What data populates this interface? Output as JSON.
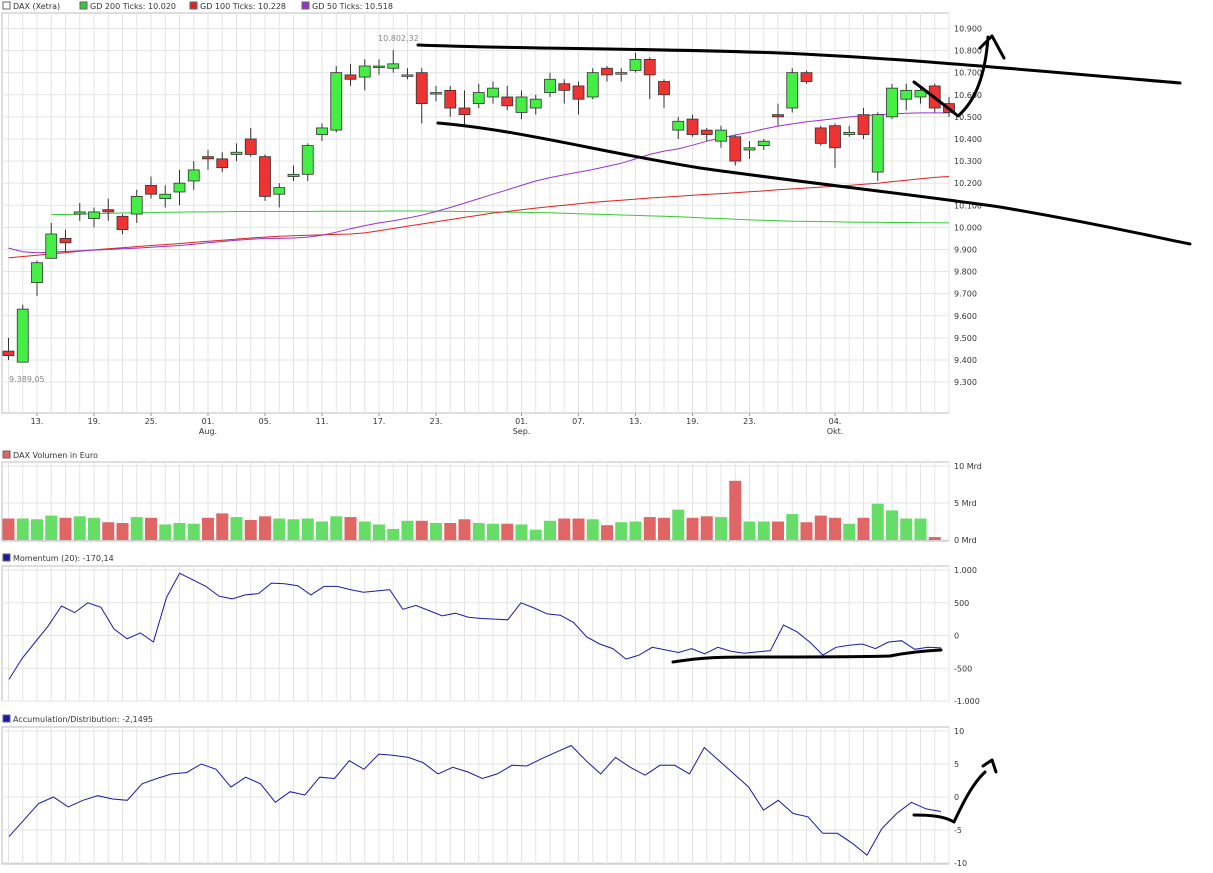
{
  "legend": {
    "main": [
      {
        "label": "DAX (Xetra)",
        "color": "#ffffff"
      },
      {
        "label": "GD 200 Ticks: 10.020",
        "color": "#33cc33"
      },
      {
        "label": "GD 100 Ticks: 10.228",
        "color": "#dd2222"
      },
      {
        "label": "GD 50 Ticks: 10.518",
        "color": "#9933cc"
      }
    ],
    "volume": {
      "label": "DAX Volumen in Euro",
      "color": "#e06666"
    },
    "momentum": {
      "label": "Momentum (20): -170,14",
      "color": "#1a1aa6"
    },
    "accdist": {
      "label": "Accumulation/Distribution: -2,1495",
      "color": "#1a1aa6"
    }
  },
  "annotations": {
    "high": "10.802,32",
    "low": "9.389,05"
  },
  "chart_data": [
    {
      "type": "candlestick",
      "title": "DAX (Xetra)",
      "ylim": [
        9160,
        10970
      ],
      "yticks": [
        "9.300",
        "9.400",
        "9.500",
        "9.600",
        "9.700",
        "9.800",
        "9.900",
        "10.000",
        "10.100",
        "10.200",
        "10.300",
        "10.400",
        "10.500",
        "10.600",
        "10.700",
        "10.800",
        "10.900"
      ],
      "xticks": [
        {
          "label": "13.",
          "i": 2
        },
        {
          "label": "19.",
          "i": 6
        },
        {
          "label": "25.",
          "i": 10
        },
        {
          "label": "01.",
          "sub": "Aug.",
          "i": 14
        },
        {
          "label": "05.",
          "i": 18
        },
        {
          "label": "11.",
          "i": 22
        },
        {
          "label": "17.",
          "i": 26
        },
        {
          "label": "23.",
          "i": 30
        },
        {
          "label": "01.",
          "sub": "Sep.",
          "i": 36
        },
        {
          "label": "07.",
          "i": 40
        },
        {
          "label": "13.",
          "i": 44
        },
        {
          "label": "19.",
          "i": 48
        },
        {
          "label": "23.",
          "i": 52
        },
        {
          "label": "04.",
          "sub": "Okt.",
          "i": 58
        }
      ],
      "candles": [
        {
          "o": 9440,
          "c": 9420,
          "h": 9500,
          "l": 9400
        },
        {
          "o": 9390,
          "c": 9630,
          "h": 9650,
          "l": 9389
        },
        {
          "o": 9750,
          "c": 9840,
          "h": 9850,
          "l": 9690
        },
        {
          "o": 9860,
          "c": 9970,
          "h": 10020,
          "l": 9860
        },
        {
          "o": 9950,
          "c": 9930,
          "h": 9990,
          "l": 9890
        },
        {
          "o": 10060,
          "c": 10070,
          "h": 10110,
          "l": 10030
        },
        {
          "o": 10040,
          "c": 10070,
          "h": 10090,
          "l": 10000
        },
        {
          "o": 10080,
          "c": 10070,
          "h": 10130,
          "l": 10030
        },
        {
          "o": 10050,
          "c": 9990,
          "h": 10060,
          "l": 9970
        },
        {
          "o": 10060,
          "c": 10140,
          "h": 10170,
          "l": 10020
        },
        {
          "o": 10190,
          "c": 10150,
          "h": 10230,
          "l": 10130
        },
        {
          "o": 10130,
          "c": 10150,
          "h": 10190,
          "l": 10090
        },
        {
          "o": 10160,
          "c": 10200,
          "h": 10260,
          "l": 10100
        },
        {
          "o": 10210,
          "c": 10260,
          "h": 10300,
          "l": 10170
        },
        {
          "o": 10320,
          "c": 10310,
          "h": 10350,
          "l": 10260
        },
        {
          "o": 10310,
          "c": 10270,
          "h": 10340,
          "l": 10250
        },
        {
          "o": 10330,
          "c": 10340,
          "h": 10380,
          "l": 10300
        },
        {
          "o": 10400,
          "c": 10330,
          "h": 10450,
          "l": 10320
        },
        {
          "o": 10320,
          "c": 10140,
          "h": 10330,
          "l": 10120
        },
        {
          "o": 10150,
          "c": 10180,
          "h": 10200,
          "l": 10090
        },
        {
          "o": 10230,
          "c": 10240,
          "h": 10280,
          "l": 10210
        },
        {
          "o": 10240,
          "c": 10370,
          "h": 10380,
          "l": 10210
        },
        {
          "o": 10420,
          "c": 10450,
          "h": 10470,
          "l": 10390
        },
        {
          "o": 10440,
          "c": 10700,
          "h": 10730,
          "l": 10430
        },
        {
          "o": 10690,
          "c": 10670,
          "h": 10740,
          "l": 10640
        },
        {
          "o": 10680,
          "c": 10730,
          "h": 10760,
          "l": 10620
        },
        {
          "o": 10730,
          "c": 10730,
          "h": 10760,
          "l": 10690
        },
        {
          "o": 10720,
          "c": 10740,
          "h": 10802,
          "l": 10700
        },
        {
          "o": 10690,
          "c": 10690,
          "h": 10720,
          "l": 10670
        },
        {
          "o": 10700,
          "c": 10560,
          "h": 10720,
          "l": 10470
        },
        {
          "o": 10610,
          "c": 10610,
          "h": 10640,
          "l": 10570
        },
        {
          "o": 10620,
          "c": 10540,
          "h": 10640,
          "l": 10500
        },
        {
          "o": 10540,
          "c": 10510,
          "h": 10620,
          "l": 10460
        },
        {
          "o": 10560,
          "c": 10610,
          "h": 10650,
          "l": 10540
        },
        {
          "o": 10590,
          "c": 10630,
          "h": 10660,
          "l": 10560
        },
        {
          "o": 10590,
          "c": 10550,
          "h": 10640,
          "l": 10530
        },
        {
          "o": 10520,
          "c": 10590,
          "h": 10620,
          "l": 10490
        },
        {
          "o": 10540,
          "c": 10580,
          "h": 10600,
          "l": 10510
        },
        {
          "o": 10610,
          "c": 10670,
          "h": 10700,
          "l": 10590
        },
        {
          "o": 10650,
          "c": 10620,
          "h": 10670,
          "l": 10560
        },
        {
          "o": 10640,
          "c": 10580,
          "h": 10660,
          "l": 10510
        },
        {
          "o": 10590,
          "c": 10700,
          "h": 10720,
          "l": 10580
        },
        {
          "o": 10720,
          "c": 10690,
          "h": 10730,
          "l": 10660
        },
        {
          "o": 10700,
          "c": 10700,
          "h": 10720,
          "l": 10660
        },
        {
          "o": 10710,
          "c": 10760,
          "h": 10790,
          "l": 10700
        },
        {
          "o": 10760,
          "c": 10690,
          "h": 10770,
          "l": 10580
        },
        {
          "o": 10660,
          "c": 10600,
          "h": 10670,
          "l": 10540
        },
        {
          "o": 10440,
          "c": 10480,
          "h": 10500,
          "l": 10400
        },
        {
          "o": 10490,
          "c": 10420,
          "h": 10510,
          "l": 10410
        },
        {
          "o": 10440,
          "c": 10420,
          "h": 10450,
          "l": 10390
        },
        {
          "o": 10390,
          "c": 10440,
          "h": 10460,
          "l": 10360
        },
        {
          "o": 10410,
          "c": 10300,
          "h": 10420,
          "l": 10280
        },
        {
          "o": 10350,
          "c": 10360,
          "h": 10390,
          "l": 10310
        },
        {
          "o": 10370,
          "c": 10390,
          "h": 10400,
          "l": 10350
        },
        {
          "o": 10510,
          "c": 10500,
          "h": 10560,
          "l": 10460
        },
        {
          "o": 10540,
          "c": 10700,
          "h": 10720,
          "l": 10520
        },
        {
          "o": 10700,
          "c": 10660,
          "h": 10710,
          "l": 10650
        },
        {
          "o": 10450,
          "c": 10380,
          "h": 10460,
          "l": 10370
        },
        {
          "o": 10460,
          "c": 10360,
          "h": 10470,
          "l": 10270
        },
        {
          "o": 10420,
          "c": 10430,
          "h": 10460,
          "l": 10410
        },
        {
          "o": 10510,
          "c": 10420,
          "h": 10540,
          "l": 10400
        },
        {
          "o": 10250,
          "c": 10510,
          "h": 10520,
          "l": 10210
        },
        {
          "o": 10500,
          "c": 10630,
          "h": 10650,
          "l": 10490
        },
        {
          "o": 10580,
          "c": 10620,
          "h": 10650,
          "l": 10530
        },
        {
          "o": 10590,
          "c": 10620,
          "h": 10630,
          "l": 10560
        },
        {
          "o": 10640,
          "c": 10540,
          "h": 10650,
          "l": 10520
        },
        {
          "o": 10560,
          "c": 10520,
          "h": 10590,
          "l": 10500
        }
      ],
      "series": [
        {
          "name": "GD 200 Ticks",
          "color": "#33cc33",
          "start": 3,
          "values": [
            10058,
            10058,
            10060,
            10062,
            10063,
            10065,
            10066,
            10067,
            10068,
            10069,
            10070,
            10070,
            10071,
            10072,
            10072,
            10072,
            10072,
            10072,
            10072,
            10073,
            10073,
            10073,
            10073,
            10073,
            10074,
            10074,
            10074,
            10073,
            10073,
            10072,
            10071,
            10070,
            10069,
            10068,
            10067,
            10066,
            10064,
            10062,
            10060,
            10058,
            10056,
            10054,
            10052,
            10050,
            10048,
            10045,
            10042,
            10040,
            10037,
            10034,
            10032,
            10030,
            10028,
            10027,
            10026,
            10025,
            10024,
            10023,
            10023,
            10022,
            10022,
            10021,
            10021,
            10020
          ]
        },
        {
          "name": "GD 100 Ticks",
          "color": "#dd2222",
          "start": 0,
          "values": [
            9862,
            9868,
            9874,
            9880,
            9886,
            9892,
            9898,
            9903,
            9908,
            9913,
            9918,
            9922,
            9927,
            9932,
            9937,
            9942,
            9947,
            9952,
            9956,
            9960,
            9962,
            9964,
            9966,
            9968,
            9970,
            9975,
            9985,
            9995,
            10005,
            10015,
            10025,
            10035,
            10045,
            10055,
            10065,
            10072,
            10080,
            10087,
            10094,
            10100,
            10107,
            10113,
            10118,
            10123,
            10128,
            10133,
            10137,
            10141,
            10145,
            10149,
            10153,
            10157,
            10161,
            10165,
            10170,
            10174,
            10178,
            10182,
            10186,
            10190,
            10195,
            10200,
            10207,
            10213,
            10220,
            10226,
            10230
          ]
        },
        {
          "name": "GD 50 Ticks",
          "color": "#9933cc",
          "start": 0,
          "values": [
            9906,
            9890,
            9885,
            9888,
            9891,
            9894,
            9897,
            9900,
            9903,
            9906,
            9910,
            9914,
            9918,
            9924,
            9930,
            9936,
            9942,
            9946,
            9950,
            9950,
            9952,
            9956,
            9964,
            9978,
            9994,
            10008,
            10020,
            10030,
            10042,
            10055,
            10072,
            10090,
            10110,
            10130,
            10150,
            10170,
            10190,
            10210,
            10225,
            10238,
            10250,
            10262,
            10276,
            10290,
            10310,
            10330,
            10345,
            10355,
            10372,
            10390,
            10405,
            10418,
            10430,
            10445,
            10458,
            10468,
            10478,
            10485,
            10492,
            10500,
            10505,
            10510,
            10513,
            10516,
            10518,
            10518,
            10518
          ]
        }
      ]
    },
    {
      "type": "bar",
      "title": "DAX Volumen in Euro",
      "ylim": [
        0,
        10
      ],
      "yticks": [
        "0 Mrd",
        "5 Mrd",
        "10 Mrd"
      ],
      "colors": {
        "up": "#66dd66",
        "down": "#e06666"
      },
      "values": [
        2.9,
        2.9,
        2.8,
        3.3,
        3.0,
        3.2,
        3.0,
        2.4,
        2.3,
        3.1,
        3.0,
        2.1,
        2.3,
        2.2,
        3.0,
        3.6,
        3.1,
        2.7,
        3.2,
        2.9,
        2.8,
        2.9,
        2.5,
        3.2,
        3.1,
        2.5,
        2.1,
        1.5,
        2.6,
        2.6,
        2.3,
        2.3,
        2.8,
        2.3,
        2.2,
        2.2,
        2.1,
        1.4,
        2.6,
        2.9,
        2.9,
        2.8,
        2.0,
        2.4,
        2.5,
        3.1,
        3.0,
        4.1,
        3.0,
        3.2,
        3.1,
        8.0,
        2.5,
        2.5,
        2.5,
        3.5,
        2.4,
        3.3,
        3.0,
        2.2,
        3.0,
        4.9,
        4.0,
        2.9,
        2.9,
        0.4
      ]
    },
    {
      "type": "line",
      "title": "Momentum (20): -170,14",
      "ylim": [
        -1000,
        1000
      ],
      "yticks": [
        "-1.000",
        "-500",
        "0",
        "500",
        "1.000"
      ],
      "values": [
        -670,
        -350,
        -100,
        150,
        450,
        350,
        500,
        430,
        100,
        -50,
        40,
        -100,
        580,
        950,
        850,
        750,
        600,
        560,
        620,
        640,
        800,
        790,
        760,
        620,
        750,
        750,
        700,
        660,
        680,
        700,
        400,
        460,
        380,
        300,
        340,
        280,
        260,
        250,
        240,
        500,
        420,
        330,
        310,
        200,
        -20,
        -130,
        -200,
        -360,
        -300,
        -180,
        -220,
        -260,
        -200,
        -280,
        -180,
        -240,
        -270,
        -250,
        -230,
        160,
        60,
        -100,
        -300,
        -180,
        -150,
        -130,
        -200,
        -100,
        -80,
        -210,
        -180,
        -190
      ]
    },
    {
      "type": "line",
      "title": "Accumulation/Distribution: -2,1495",
      "ylim": [
        -10,
        10
      ],
      "yticks": [
        "-10",
        "-5",
        "0",
        "5",
        "10"
      ],
      "values": [
        -6,
        -3.5,
        -1,
        0,
        -1.5,
        -0.5,
        0.2,
        -0.3,
        -0.5,
        2,
        2.8,
        3.5,
        3.7,
        5,
        4.2,
        1.5,
        3,
        2,
        -0.8,
        0.8,
        0.3,
        3,
        2.8,
        5.5,
        4.2,
        6.5,
        6.3,
        6,
        5.2,
        3.5,
        4.5,
        3.8,
        2.8,
        3.5,
        4.8,
        4.7,
        5.8,
        6.8,
        7.8,
        5.5,
        3.5,
        6,
        4.5,
        3.3,
        4.8,
        4.8,
        3.5,
        7.5,
        5.5,
        3.5,
        1.5,
        -2,
        -0.5,
        -2.5,
        -3,
        -5.5,
        -5.5,
        -7,
        -8.8,
        -4.8,
        -2.5,
        -0.8,
        -1.8,
        -2.2
      ]
    }
  ]
}
